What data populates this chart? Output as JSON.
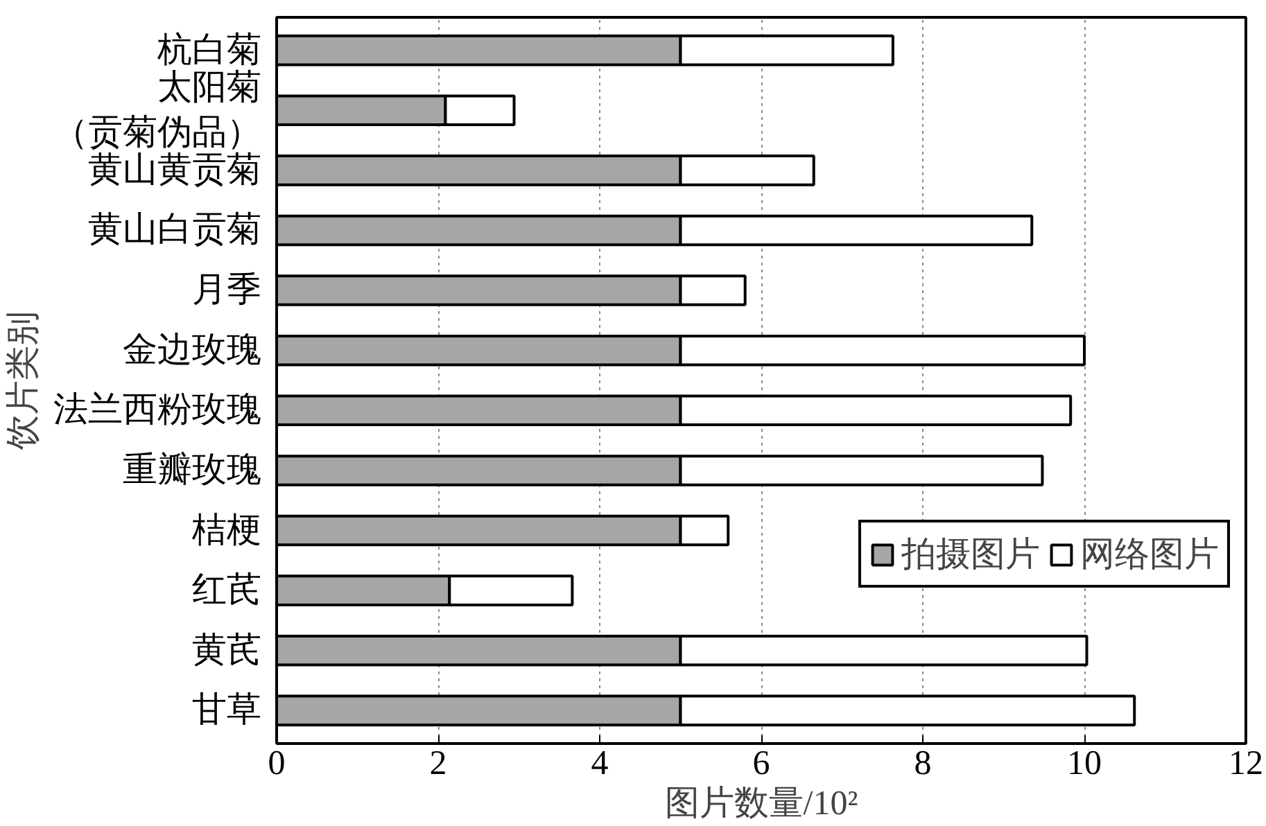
{
  "chart_data": {
    "type": "bar",
    "orientation": "horizontal",
    "stacked": true,
    "categories": [
      "杭白菊",
      "太阳菊（贡菊伪品）",
      "黄山黄贡菊",
      "黄山白贡菊",
      "月季",
      "金边玫瑰",
      "法兰西粉玫瑰",
      "重瓣玫瑰",
      "桔梗",
      "红芪",
      "黄芪",
      "甘草"
    ],
    "series": [
      {
        "name": "拍摄图片",
        "color": "#a6a6a6",
        "values": [
          5,
          2.09,
          5,
          5,
          5,
          5,
          5,
          5,
          5,
          2.14,
          5,
          5
        ]
      },
      {
        "name": "网络图片",
        "color": "#ffffff",
        "values": [
          2.63,
          0.85,
          1.65,
          4.35,
          0.8,
          5.0,
          4.83,
          4.48,
          0.59,
          1.52,
          5.03,
          5.62
        ]
      }
    ],
    "xlabel": "图片数量/10²",
    "ylabel": "饮片类别",
    "xlim": [
      0,
      12
    ],
    "xticks": [
      0,
      2,
      4,
      6,
      8,
      10,
      12
    ],
    "grid": "x",
    "legend": "right"
  }
}
